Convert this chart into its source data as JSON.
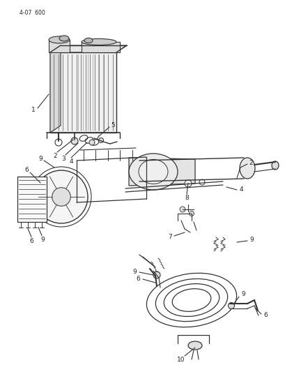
{
  "page_id": "4-07  600",
  "background": "#ffffff",
  "lc": "#333333",
  "tc": "#222222",
  "figsize": [
    4.1,
    5.33
  ],
  "dpi": 100
}
